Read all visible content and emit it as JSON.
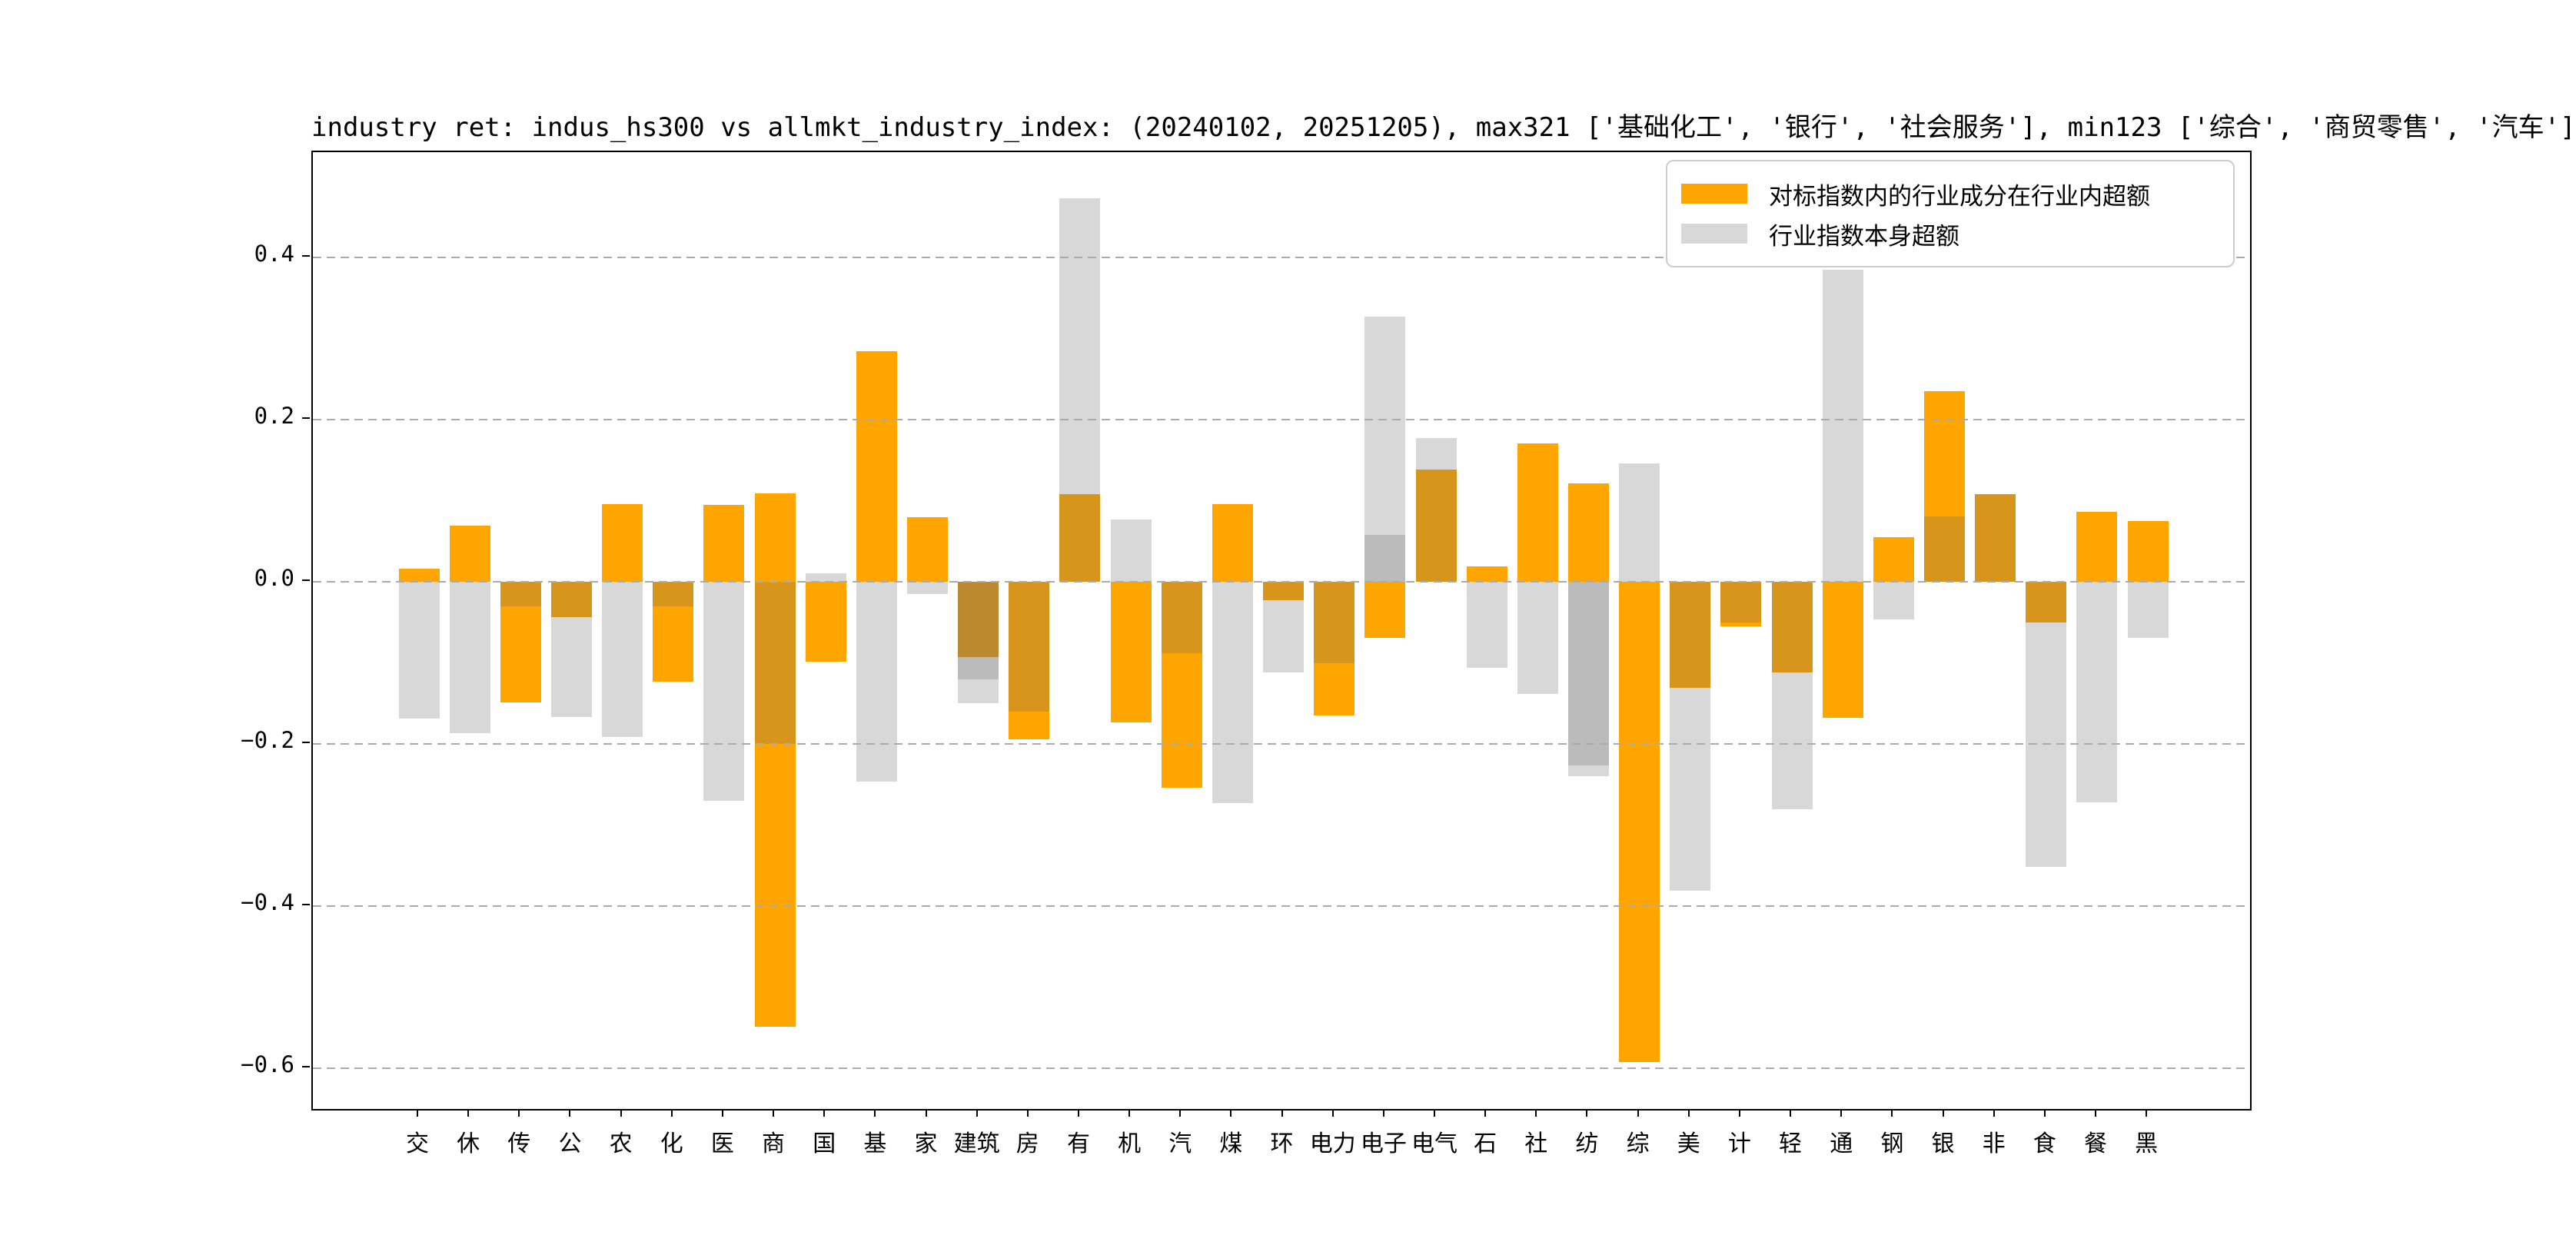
{
  "chart_data": {
    "type": "bar",
    "title": "industry ret: indus_hs300 vs allmkt_industry_index: (20240102, 20251205), max321 ['基础化工', '银行', '社会服务'], min123 ['综合', '商贸零售', '汽车']",
    "categories": [
      "交",
      "休",
      "传",
      "公",
      "农",
      "化",
      "医",
      "商",
      "国",
      "基",
      "家",
      "建筑",
      "房",
      "有",
      "机",
      "汽",
      "煤",
      "环",
      "电力",
      "电子",
      "电气",
      "石",
      "社",
      "纺",
      "综",
      "美",
      "计",
      "轻",
      "通",
      "钢",
      "银",
      "非",
      "食",
      "餐",
      "黑"
    ],
    "series": [
      {
        "name": "对标指数内的行业成分在行业内超额",
        "color": "#FFA500",
        "render": "opaque, drawn first; categories may contain two segments (positive and negative)",
        "values": [
          [
            0.016
          ],
          [
            0.069
          ],
          [
            -0.149
          ],
          [
            -0.044
          ],
          [
            0.096
          ],
          [
            -0.123
          ],
          [
            0.095
          ],
          [
            0.109,
            -0.549
          ],
          [
            -0.099
          ],
          [
            0.284
          ],
          [
            0.08
          ],
          [
            -0.093
          ],
          [
            -0.194
          ],
          [
            0.108
          ],
          [
            -0.173
          ],
          [
            -0.254
          ],
          [
            0.096
          ],
          [
            -0.023
          ],
          [
            -0.165
          ],
          [
            -0.069
          ],
          [
            0.138
          ],
          [
            0.019
          ],
          [
            0.171
          ],
          [
            0.121
          ],
          [
            -0.592
          ],
          [
            -0.131
          ],
          [
            -0.055
          ],
          [
            -0.112
          ],
          [
            -0.168
          ],
          [
            0.055
          ],
          [
            0.235
          ],
          [
            0.108
          ],
          [
            -0.05
          ],
          [
            0.086
          ],
          [
            0.075
          ]
        ]
      },
      {
        "name": "行业指数本身超额",
        "color": "rgba(103,103,103,0.26)",
        "legend_color": "#D8D8D8",
        "render": "translucent gray drawn on top of orange; overlap over orange looks dark amber, double-gray looks darker gray",
        "values": [
          [
            -0.169
          ],
          [
            -0.187
          ],
          [
            -0.03
          ],
          [
            -0.167
          ],
          [
            -0.191
          ],
          [
            -0.03
          ],
          [
            -0.27
          ],
          [
            -0.2
          ],
          [
            0.01
          ],
          [
            -0.246
          ],
          [
            -0.015
          ],
          [
            -0.12,
            -0.15
          ],
          [
            -0.16
          ],
          [
            0.473
          ],
          [
            0.077
          ],
          [
            -0.088
          ],
          [
            -0.273
          ],
          [
            -0.112
          ],
          [
            -0.1
          ],
          [
            0.327,
            0.058
          ],
          [
            0.177
          ],
          [
            -0.106
          ],
          [
            -0.138
          ],
          [
            -0.227,
            -0.24
          ],
          [
            0.146
          ],
          [
            -0.381
          ],
          [
            -0.05
          ],
          [
            -0.281
          ],
          [
            0.385
          ],
          [
            -0.046
          ],
          [
            0.081
          ],
          [
            0.108
          ],
          [
            -0.352
          ],
          [
            -0.272
          ],
          [
            -0.069
          ]
        ]
      }
    ],
    "ylim": [
      -0.65,
      0.53
    ],
    "ytick_values": [
      0.4,
      0.2,
      0.0,
      -0.2,
      -0.4,
      -0.6
    ],
    "ytick_labels": [
      "0.4",
      "0.2",
      "0.0",
      "−0.2",
      "−0.4",
      "−0.6"
    ],
    "xlabel": "",
    "ylabel": "",
    "grid": "horizontal dashed gridlines drawn above bars",
    "legend_position": "upper right"
  }
}
